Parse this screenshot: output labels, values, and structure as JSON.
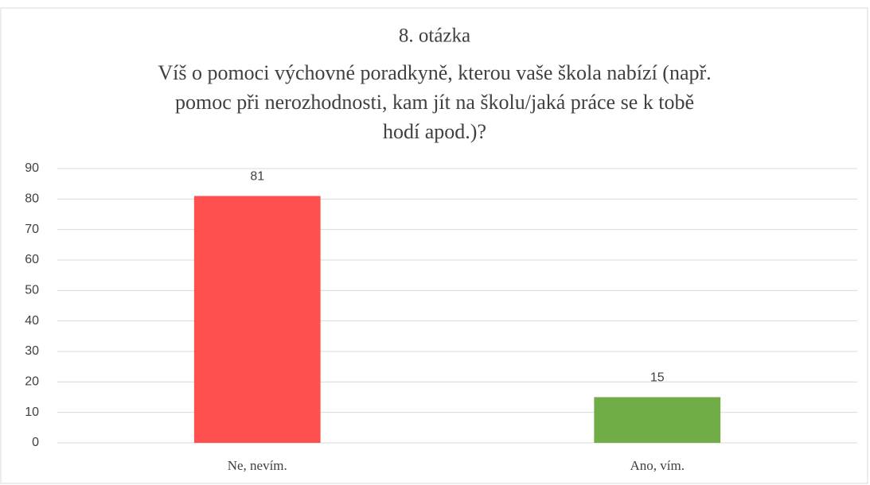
{
  "chart_data": {
    "type": "bar",
    "title": [
      "8. otázka",
      "Víš o pomoci výchovné poradkyně, kterou vaše škola nabízí (např.",
      "pomoc při nerozhodnosti, kam jít na školu/jaká práce se k tobě",
      "hodí apod.)?"
    ],
    "categories": [
      "Ne, nevím.",
      "Ano, vím."
    ],
    "values": [
      81,
      15
    ],
    "colors": [
      "#ff5050",
      "#70ad47"
    ],
    "ylim": [
      0,
      90
    ],
    "yticks": [
      0,
      10,
      20,
      30,
      40,
      50,
      60,
      70,
      80,
      90
    ],
    "grid": true
  }
}
